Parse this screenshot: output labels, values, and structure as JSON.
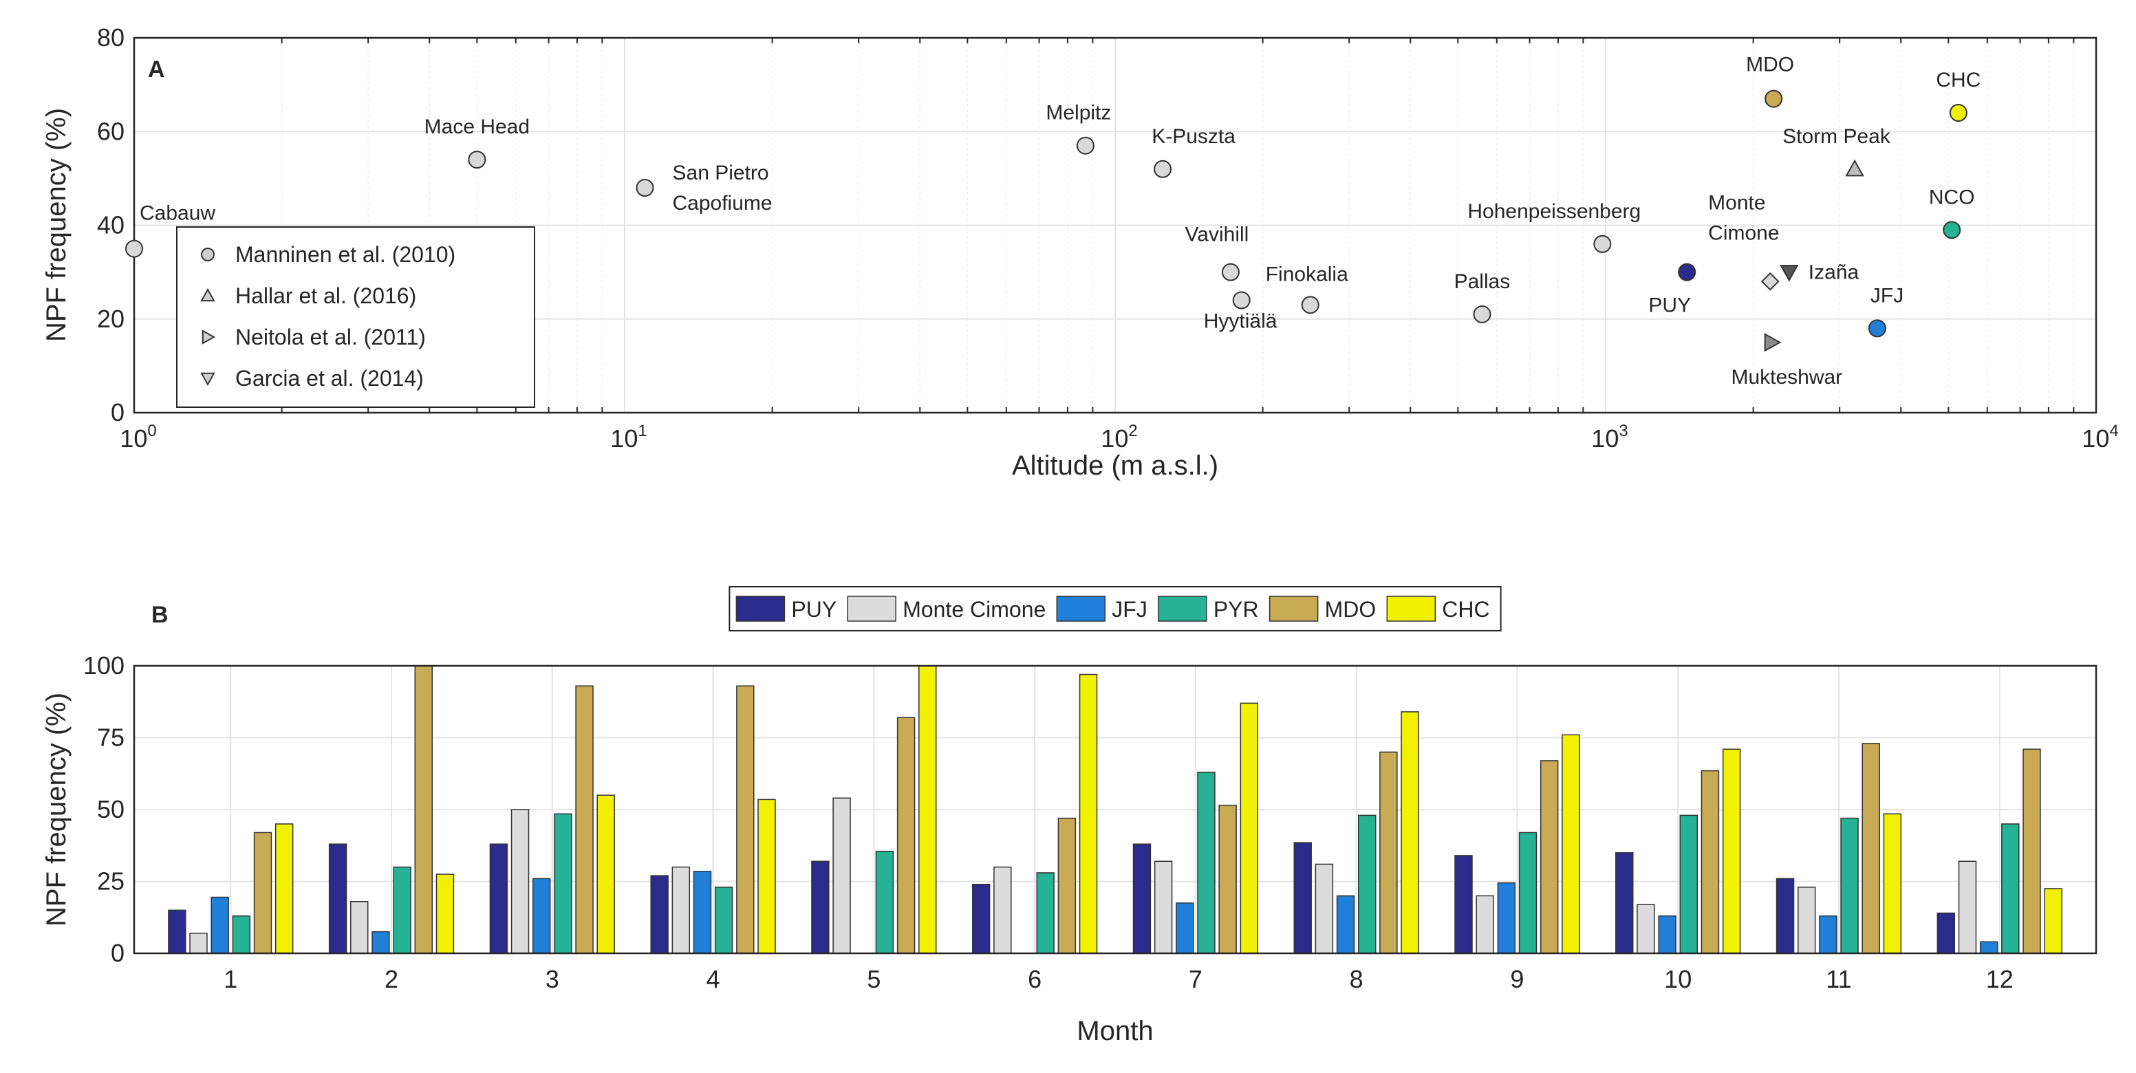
{
  "chart_data": [
    {
      "panel": "A",
      "type": "scatter",
      "xlabel": "Altitude (m a.s.l.)",
      "ylabel": "NPF frequency (%)",
      "xscale": "log",
      "xlim": [
        1,
        10000
      ],
      "ylim": [
        0,
        80
      ],
      "x_tick_labels": [
        {
          "base": "10",
          "exp": "0"
        },
        {
          "base": "10",
          "exp": "1"
        },
        {
          "base": "10",
          "exp": "2"
        },
        {
          "base": "10",
          "exp": "3"
        },
        {
          "base": "10",
          "exp": "4"
        }
      ],
      "y_ticks": [
        0,
        20,
        40,
        60,
        80
      ],
      "grid": true,
      "legend_position": "bottom-left",
      "legend": [
        {
          "label": "Manninen et al. (2010)",
          "marker": "circle"
        },
        {
          "label": "Hallar et al. (2016)",
          "marker": "triangle-up"
        },
        {
          "label": "Neitola et al. (2011)",
          "marker": "triangle-right"
        },
        {
          "label": "Garcia et al. (2014)",
          "marker": "triangle-down"
        }
      ],
      "points": [
        {
          "site": "Cabauw",
          "label_lines": [
            "Cabauw"
          ],
          "x": 1,
          "y": 35,
          "marker": "circle",
          "color": "#d9d9d9"
        },
        {
          "site": "Mace Head",
          "label_lines": [
            "Mace Head"
          ],
          "x": 5,
          "y": 54,
          "marker": "circle",
          "color": "#d9d9d9"
        },
        {
          "site": "San Pietro Capofiume",
          "label_lines": [
            "San Pietro",
            "Capofiume"
          ],
          "x": 11,
          "y": 48,
          "marker": "circle",
          "color": "#d9d9d9"
        },
        {
          "site": "Melpitz",
          "label_lines": [
            "Melpitz"
          ],
          "x": 87,
          "y": 57,
          "marker": "circle",
          "color": "#d9d9d9"
        },
        {
          "site": "K-Puszta",
          "label_lines": [
            "K-Puszta"
          ],
          "x": 125,
          "y": 52,
          "marker": "circle",
          "color": "#d9d9d9"
        },
        {
          "site": "Vavihill",
          "label_lines": [
            "Vavihill"
          ],
          "x": 172,
          "y": 30,
          "marker": "circle",
          "color": "#d9d9d9"
        },
        {
          "site": "Hyytiälä",
          "label_lines": [
            "Hyytiälä"
          ],
          "x": 181,
          "y": 24,
          "marker": "circle",
          "color": "#d9d9d9"
        },
        {
          "site": "Finokalia",
          "label_lines": [
            "Finokalia"
          ],
          "x": 250,
          "y": 23,
          "marker": "circle",
          "color": "#d9d9d9"
        },
        {
          "site": "Pallas",
          "label_lines": [
            "Pallas"
          ],
          "x": 560,
          "y": 21,
          "marker": "circle",
          "color": "#d9d9d9"
        },
        {
          "site": "Hohenpeissenberg",
          "label_lines": [
            "Hohenpeissenberg"
          ],
          "x": 985,
          "y": 36,
          "marker": "circle",
          "color": "#d9d9d9"
        },
        {
          "site": "PUY",
          "label_lines": [
            "PUY"
          ],
          "x": 1465,
          "y": 30,
          "marker": "circle",
          "color": "#2b2b8c"
        },
        {
          "site": "Monte Cimone",
          "label_lines": [
            "Monte",
            "Cimone"
          ],
          "x": 2165,
          "y": 28,
          "marker": "diamond",
          "color": "#d9d9d9"
        },
        {
          "site": "Izaña",
          "label_lines": [
            "Izaña"
          ],
          "x": 2367,
          "y": 30,
          "marker": "triangle-down",
          "color": "#555555"
        },
        {
          "site": "Mukteshwar",
          "label_lines": [
            "Mukteshwar"
          ],
          "x": 2180,
          "y": 15,
          "marker": "triangle-right",
          "color": "#8c8c8c"
        },
        {
          "site": "MDO",
          "label_lines": [
            "MDO"
          ],
          "x": 2200,
          "y": 67,
          "marker": "circle",
          "color": "#c9ab55"
        },
        {
          "site": "Storm Peak",
          "label_lines": [
            "Storm Peak"
          ],
          "x": 3220,
          "y": 52,
          "marker": "triangle-up",
          "color": "#bdbdbd"
        },
        {
          "site": "JFJ",
          "label_lines": [
            "JFJ"
          ],
          "x": 3580,
          "y": 18,
          "marker": "circle",
          "color": "#1f7fd9"
        },
        {
          "site": "NCO",
          "label_lines": [
            "NCO"
          ],
          "x": 5079,
          "y": 39,
          "marker": "circle",
          "color": "#26b395"
        },
        {
          "site": "CHC",
          "label_lines": [
            "CHC"
          ],
          "x": 5240,
          "y": 64,
          "marker": "circle",
          "color": "#f2f200"
        }
      ]
    },
    {
      "panel": "B",
      "type": "bar",
      "xlabel": "Month",
      "ylabel": "NPF frequency (%)",
      "ylim": [
        0,
        100
      ],
      "y_ticks": [
        0,
        25,
        50,
        75,
        100
      ],
      "grid": true,
      "legend_position": "top",
      "categories": [
        "1",
        "2",
        "3",
        "4",
        "5",
        "6",
        "7",
        "8",
        "9",
        "10",
        "11",
        "12"
      ],
      "series": [
        {
          "name": "PUY",
          "color": "#2b2b8c",
          "values": [
            15,
            38,
            38,
            27,
            32,
            24,
            38,
            38.5,
            34,
            35,
            26,
            14
          ]
        },
        {
          "name": "Monte Cimone",
          "color": "#dcdcdc",
          "values": [
            7,
            18,
            50,
            30,
            54,
            30,
            32,
            31,
            20,
            17,
            23,
            32
          ]
        },
        {
          "name": "JFJ",
          "color": "#1f7fd9",
          "values": [
            19.5,
            7.5,
            26,
            28.5,
            0,
            0,
            17.5,
            20,
            24.5,
            13,
            13,
            4
          ]
        },
        {
          "name": "PYR",
          "color": "#26b395",
          "values": [
            13,
            30,
            48.5,
            23,
            35.5,
            28,
            63,
            48,
            42,
            48,
            47,
            45
          ]
        },
        {
          "name": "MDO",
          "color": "#c9ab55",
          "values": [
            42,
            100,
            93,
            93,
            82,
            47,
            51.5,
            70,
            67,
            63.5,
            73,
            71
          ]
        },
        {
          "name": "CHC",
          "color": "#f2f200",
          "values": [
            45,
            27.5,
            55,
            53.5,
            100,
            97,
            87,
            84,
            76,
            71,
            48.5,
            22.5
          ]
        }
      ]
    }
  ]
}
